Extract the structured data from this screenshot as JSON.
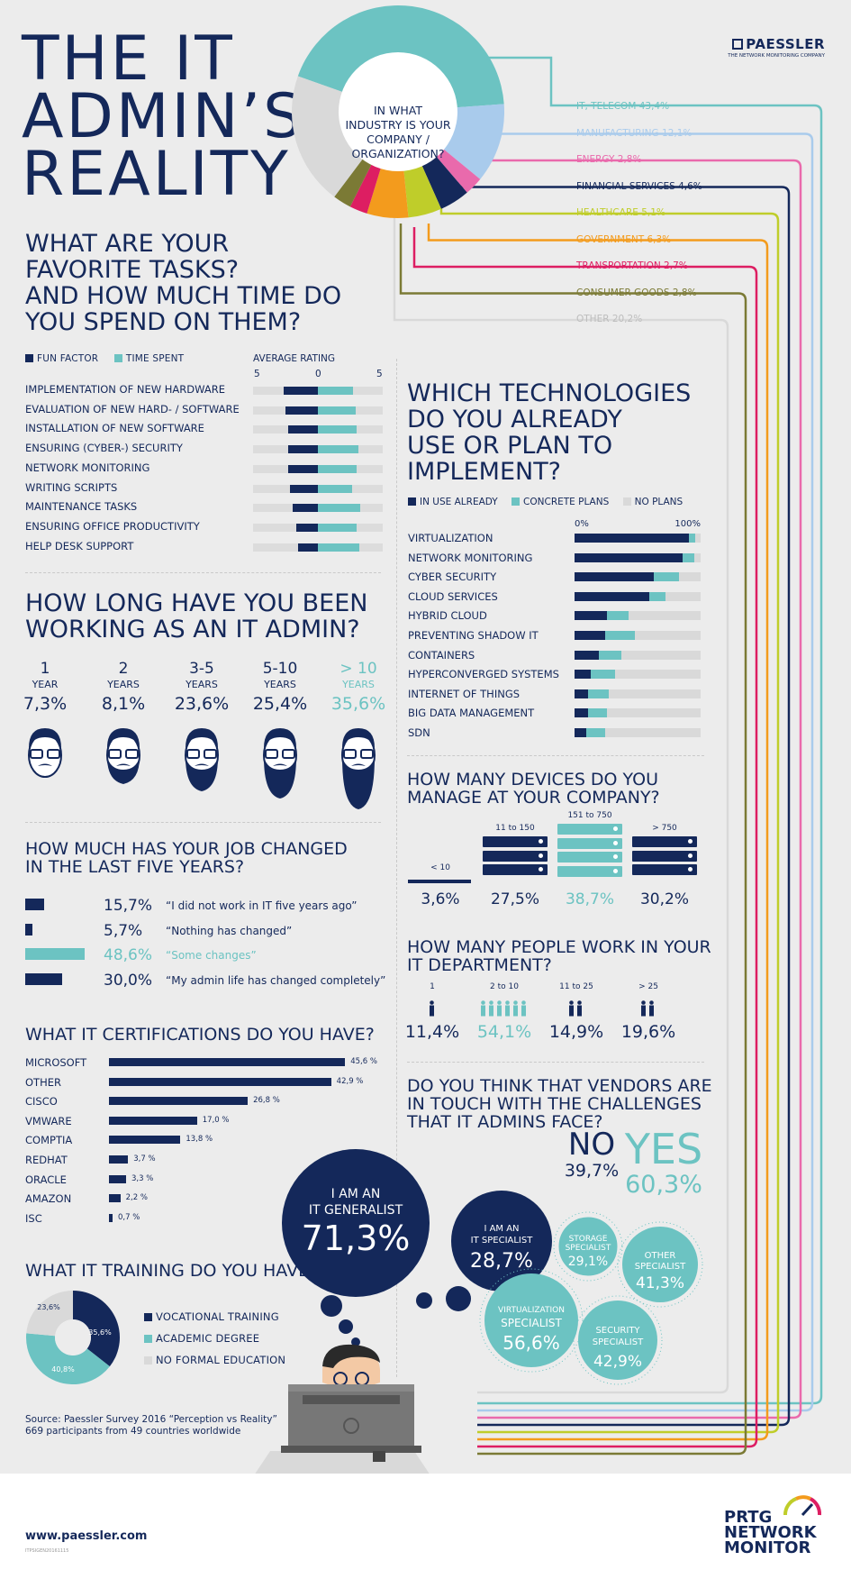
{
  "title": [
    "THE IT",
    "ADMIN’S",
    "REALITY"
  ],
  "brand": {
    "name": "PAESSLER",
    "tagline": "THE NETWORK MONITORING COMPANY"
  },
  "industry": {
    "question": [
      "IN WHAT",
      "INDUSTRY IS YOUR",
      "COMPANY /",
      "ORGANIZATION?"
    ],
    "items": [
      {
        "label": "IT, TELECOM 43,4%",
        "value": 43.4,
        "color": "#6cc3c2"
      },
      {
        "label": "MANUFACTURING 12,1%",
        "value": 12.1,
        "color": "#a9cbec"
      },
      {
        "label": "ENERGY 2,8%",
        "value": 2.8,
        "color": "#e96aac"
      },
      {
        "label": "FINANCIAL SERVICES 4,6%",
        "value": 4.6,
        "color": "#14285a"
      },
      {
        "label": "HEALTHCARE 5,1%",
        "value": 5.1,
        "color": "#bfcd2a"
      },
      {
        "label": "GOVERNMENT 6,3%",
        "value": 6.3,
        "color": "#f39b1d"
      },
      {
        "label": "TRANSPORTATION 2,7%",
        "value": 2.7,
        "color": "#dd1e62"
      },
      {
        "label": "CONSUMER GOODS 2,8%",
        "value": 2.8,
        "color": "#7b7a35"
      },
      {
        "label": "OTHER 20,2%",
        "value": 20.2,
        "color": "#d9d9d9"
      }
    ]
  },
  "tasks": {
    "heading": [
      "WHAT ARE YOUR",
      "FAVORITE TASKS?",
      "AND HOW MUCH TIME DO",
      "YOU SPEND ON THEM?"
    ],
    "legend": {
      "fun": "FUN FACTOR",
      "time": "TIME SPENT",
      "avg": "AVERAGE RATING"
    },
    "scale": [
      "5",
      "0",
      "5"
    ],
    "rows": [
      {
        "label": "IMPLEMENTATION OF NEW HARDWARE",
        "fun": 3.0,
        "time": 3.1
      },
      {
        "label": "EVALUATION OF NEW HARD- / SOFTWARE",
        "fun": 2.8,
        "time": 3.3
      },
      {
        "label": "INSTALLATION OF NEW SOFTWARE",
        "fun": 2.6,
        "time": 3.4
      },
      {
        "label": "ENSURING (CYBER-) SECURITY",
        "fun": 2.6,
        "time": 3.5
      },
      {
        "label": "NETWORK MONITORING",
        "fun": 2.6,
        "time": 3.4
      },
      {
        "label": "WRITING SCRIPTS",
        "fun": 2.4,
        "time": 3.0
      },
      {
        "label": "MAINTENANCE TASKS",
        "fun": 2.2,
        "time": 3.7
      },
      {
        "label": "ENSURING OFFICE PRODUCTIVITY",
        "fun": 1.9,
        "time": 3.4
      },
      {
        "label": "HELP DESK SUPPORT",
        "fun": 1.7,
        "time": 3.6
      }
    ]
  },
  "tenure": {
    "heading": [
      "HOW LONG HAVE YOU BEEN",
      "WORKING AS AN IT ADMIN?"
    ],
    "items": [
      {
        "n": "1",
        "unit": "YEAR",
        "pct": "7,3%"
      },
      {
        "n": "2",
        "unit": "YEARS",
        "pct": "8,1%"
      },
      {
        "n": "3-5",
        "unit": "YEARS",
        "pct": "23,6%"
      },
      {
        "n": "5-10",
        "unit": "YEARS",
        "pct": "25,4%"
      },
      {
        "n": "> 10",
        "unit": "YEARS",
        "pct": "35,6%"
      }
    ]
  },
  "jobchange": {
    "heading": [
      "HOW MUCH HAS YOUR JOB CHANGED",
      "IN THE LAST FIVE YEARS?"
    ],
    "rows": [
      {
        "pct": "15,7%",
        "value": 15.7,
        "quote": "“I did not work in IT five years ago”"
      },
      {
        "pct": "5,7%",
        "value": 5.7,
        "quote": "“Nothing has changed”"
      },
      {
        "pct": "48,6%",
        "value": 48.6,
        "quote": "“Some changes”"
      },
      {
        "pct": "30,0%",
        "value": 30.0,
        "quote": "“My admin life has changed completely”"
      }
    ]
  },
  "certs": {
    "heading": "WHAT IT CERTIFICATIONS DO YOU HAVE?",
    "rows": [
      {
        "label": "MICROSOFT",
        "value": 45.6,
        "text": "45,6 %"
      },
      {
        "label": "OTHER",
        "value": 42.9,
        "text": "42,9 %"
      },
      {
        "label": "CISCO",
        "value": 26.8,
        "text": "26,8 %"
      },
      {
        "label": "VMWARE",
        "value": 17.0,
        "text": "17,0 %"
      },
      {
        "label": "COMPTIA",
        "value": 13.8,
        "text": "13,8 %"
      },
      {
        "label": "REDHAT",
        "value": 3.7,
        "text": "3,7 %"
      },
      {
        "label": "ORACLE",
        "value": 3.3,
        "text": "3,3 %"
      },
      {
        "label": "AMAZON",
        "value": 2.2,
        "text": "2,2 %"
      },
      {
        "label": "ISC",
        "value": 0.7,
        "text": "0,7 %"
      }
    ]
  },
  "training": {
    "heading": "WHAT IT TRAINING DO YOU HAVE?",
    "items": [
      {
        "label": "VOCATIONAL TRAINING",
        "value": 35.6,
        "text": "35,6%",
        "color": "#14285a"
      },
      {
        "label": "ACADEMIC DEGREE",
        "value": 40.8,
        "text": "40,8%",
        "color": "#6cc3c2"
      },
      {
        "label": "NO FORMAL EDUCATION",
        "value": 23.6,
        "text": "23,6%",
        "color": "#d9d9d9"
      }
    ]
  },
  "tech": {
    "heading": [
      "WHICH TECHNOLOGIES",
      "DO YOU ALREADY",
      "USE OR PLAN TO",
      "IMPLEMENT?"
    ],
    "legend": {
      "use": "IN USE ALREADY",
      "plans": "CONCRETE PLANS",
      "none": "NO PLANS"
    },
    "scale": [
      "0%",
      "100%"
    ],
    "rows": [
      {
        "label": "VIRTUALIZATION",
        "use": 91,
        "plan": 5
      },
      {
        "label": "NETWORK MONITORING",
        "use": 86,
        "plan": 9
      },
      {
        "label": "CYBER SECURITY",
        "use": 63,
        "plan": 20
      },
      {
        "label": "CLOUD SERVICES",
        "use": 59,
        "plan": 13
      },
      {
        "label": "HYBRID CLOUD",
        "use": 26,
        "plan": 17
      },
      {
        "label": "PREVENTING SHADOW IT",
        "use": 24,
        "plan": 24
      },
      {
        "label": "CONTAINERS",
        "use": 19,
        "plan": 18
      },
      {
        "label": "HYPERCONVERGED SYSTEMS",
        "use": 13,
        "plan": 19
      },
      {
        "label": "INTERNET OF THINGS",
        "use": 11,
        "plan": 16
      },
      {
        "label": "BIG DATA MANAGEMENT",
        "use": 11,
        "plan": 15
      },
      {
        "label": "SDN",
        "use": 9,
        "plan": 15
      }
    ]
  },
  "devices": {
    "heading": [
      "HOW MANY DEVICES DO YOU",
      "MANAGE AT YOUR COMPANY?"
    ],
    "items": [
      {
        "range": "< 10",
        "pct": "3,6%"
      },
      {
        "range": "11 to 150",
        "pct": "27,5%"
      },
      {
        "range": "151 to 750",
        "pct": "38,7%"
      },
      {
        "range": "> 750",
        "pct": "30,2%"
      }
    ]
  },
  "people": {
    "heading": [
      "HOW MANY PEOPLE WORK IN YOUR",
      "IT DEPARTMENT?"
    ],
    "items": [
      {
        "range": "1",
        "pct": "11,4%"
      },
      {
        "range": "2 to 10",
        "pct": "54,1%"
      },
      {
        "range": "11 to 25",
        "pct": "14,9%"
      },
      {
        "range": "> 25",
        "pct": "19,6%"
      }
    ]
  },
  "vendors": {
    "heading": [
      "DO YOU THINK THAT VENDORS ARE",
      "IN TOUCH WITH THE CHALLENGES",
      "THAT IT ADMINS FACE?"
    ],
    "no": "NO",
    "no_pct": "39,7%",
    "yes": "YES",
    "yes_pct": "60,3%"
  },
  "roles": {
    "generalist": {
      "l1": "I AM AN",
      "l2": "IT GENERALIST",
      "pct": "71,3%"
    },
    "specialist": {
      "l1": "I AM AN",
      "l2": "IT SPECIALIST",
      "pct": "28,7%"
    },
    "storage": {
      "l1": "STORAGE",
      "l2": "SPECIALIST",
      "pct": "29,1%"
    },
    "other": {
      "l1": "OTHER",
      "l2": "SPECIALIST",
      "pct": "41,3%"
    },
    "virt": {
      "l1": "VIRTUALIZATION",
      "l2": "SPECIALIST",
      "pct": "56,6%"
    },
    "security": {
      "l1": "SECURITY",
      "l2": "SPECIALIST",
      "pct": "42,9%"
    }
  },
  "source": [
    "Source: Paessler Survey 2016 “Perception vs Reality”",
    "669 participants from 49 countries worldwide"
  ],
  "footer": {
    "url": "www.paessler.com",
    "code": "ITPSIGEN20161115",
    "product": [
      "PRTG",
      "NETWORK",
      "MONITOR"
    ]
  }
}
